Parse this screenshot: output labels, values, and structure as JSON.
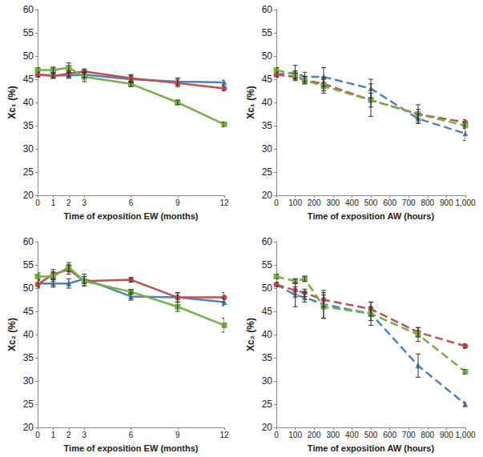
{
  "chart_data": [
    {
      "type": "line",
      "x_label": "Time of exposition EW (months)",
      "y_label": "Xc₁ (%)",
      "x": [
        0,
        1,
        2,
        3,
        6,
        9,
        12
      ],
      "xlim": [
        0,
        12
      ],
      "xticks": [
        0,
        1,
        2,
        3,
        6,
        9,
        12
      ],
      "ylim": [
        20,
        60
      ],
      "yticks": [
        20,
        25,
        30,
        35,
        40,
        45,
        50,
        55,
        60
      ],
      "grid": false,
      "series": [
        {
          "color": "#4f81bd",
          "marker": "triangle",
          "line_style": "solid",
          "values": [
            46,
            45.8,
            45.8,
            46,
            45,
            44.5,
            44.3
          ],
          "errors": [
            0.5,
            0.5,
            0.6,
            0.6,
            0.8,
            0.8,
            0.5
          ]
        },
        {
          "color": "#c0504d",
          "marker": "circle",
          "line_style": "solid",
          "values": [
            46,
            45.7,
            46.2,
            46.7,
            45.2,
            44.2,
            43
          ],
          "errors": [
            0.5,
            0.5,
            0.6,
            0.5,
            0.8,
            0.8,
            0.5
          ]
        },
        {
          "color": "#77b045",
          "marker": "square",
          "line_style": "solid",
          "values": [
            47,
            47,
            47.5,
            45.5,
            44,
            40,
            35.3
          ],
          "errors": [
            0.5,
            0.6,
            1,
            1,
            0.6,
            0.5,
            0.5
          ]
        }
      ]
    },
    {
      "type": "line",
      "x_label": "Time of exposition AW (hours)",
      "y_label": "Xc₁ (%)",
      "x": [
        0,
        100,
        150,
        250,
        500,
        750,
        1000
      ],
      "xlim": [
        0,
        1000
      ],
      "xticks": [
        0,
        100,
        200,
        300,
        400,
        500,
        600,
        700,
        800,
        900,
        1000
      ],
      "ylim": [
        20,
        60
      ],
      "yticks": [
        20,
        25,
        30,
        35,
        40,
        45,
        50,
        55,
        60
      ],
      "grid": false,
      "series": [
        {
          "color": "#4f81bd",
          "marker": "triangle",
          "line_style": "dashed",
          "values": [
            46,
            46.5,
            45.5,
            45.5,
            43,
            36.5,
            33.3
          ],
          "errors": [
            0.5,
            1.5,
            1,
            2,
            2,
            1,
            1.5
          ]
        },
        {
          "color": "#c0504d",
          "marker": "circle",
          "line_style": "dashed",
          "values": [
            46,
            45.5,
            44.8,
            44,
            40.5,
            37.5,
            35.7
          ],
          "errors": [
            0.5,
            0.8,
            0.8,
            1.5,
            1.5,
            2,
            0.6
          ]
        },
        {
          "color": "#77b045",
          "marker": "square",
          "line_style": "dashed",
          "values": [
            47,
            46,
            44.8,
            43.5,
            40.5,
            37.5,
            35
          ],
          "errors": [
            0.5,
            0.8,
            0.8,
            1.5,
            3.5,
            1,
            0.6
          ]
        }
      ]
    },
    {
      "type": "line",
      "x_label": "Time of exposition EW (months)",
      "y_label": "Xc₂ (%)",
      "x": [
        0,
        1,
        2,
        3,
        6,
        9,
        12
      ],
      "xlim": [
        0,
        12
      ],
      "xticks": [
        0,
        1,
        2,
        3,
        6,
        9,
        12
      ],
      "ylim": [
        20,
        60
      ],
      "yticks": [
        20,
        25,
        30,
        35,
        40,
        45,
        50,
        55,
        60
      ],
      "grid": false,
      "series": [
        {
          "color": "#4f81bd",
          "marker": "triangle",
          "line_style": "solid",
          "values": [
            51,
            51,
            51,
            52,
            48.2,
            48,
            47
          ],
          "errors": [
            0.8,
            0.8,
            1,
            1,
            0.8,
            1,
            0.8
          ]
        },
        {
          "color": "#c0504d",
          "marker": "circle",
          "line_style": "solid",
          "values": [
            50.8,
            53,
            54,
            51.5,
            51.8,
            48,
            48
          ],
          "errors": [
            0.8,
            1,
            1,
            1,
            0.5,
            1,
            1
          ]
        },
        {
          "color": "#77b045",
          "marker": "square",
          "line_style": "solid",
          "values": [
            52.5,
            52.5,
            54.5,
            51.5,
            49.2,
            46,
            42
          ],
          "errors": [
            0.8,
            1,
            1,
            1,
            0.5,
            1,
            1.5
          ]
        }
      ]
    },
    {
      "type": "line",
      "x_label": "Time of exposition AW (hours)",
      "y_label": "Xc₂ (%)",
      "x": [
        0,
        100,
        150,
        250,
        500,
        750,
        1000
      ],
      "xlim": [
        0,
        1000
      ],
      "xticks": [
        0,
        100,
        200,
        300,
        400,
        500,
        600,
        700,
        800,
        900,
        1000
      ],
      "ylim": [
        20,
        60
      ],
      "yticks": [
        20,
        25,
        30,
        35,
        40,
        45,
        50,
        55,
        60
      ],
      "grid": false,
      "series": [
        {
          "color": "#4f81bd",
          "marker": "triangle",
          "line_style": "dashed",
          "values": [
            50.8,
            48.5,
            48,
            46.5,
            44.5,
            33.3,
            25
          ],
          "errors": [
            0.5,
            2.5,
            1,
            3,
            2.5,
            2.5,
            0.5
          ]
        },
        {
          "color": "#c0504d",
          "marker": "circle",
          "line_style": "dashed",
          "values": [
            50.8,
            49.5,
            49,
            47.5,
            45.5,
            40.5,
            37.5
          ],
          "errors": [
            0.5,
            0.8,
            0.8,
            1.5,
            1.5,
            1,
            0.5
          ]
        },
        {
          "color": "#77b045",
          "marker": "square",
          "line_style": "dashed",
          "values": [
            52.5,
            51.5,
            52,
            46,
            44.5,
            40,
            32
          ],
          "errors": [
            0.5,
            0.5,
            0.6,
            2.5,
            1.5,
            1.5,
            0.5
          ]
        }
      ]
    }
  ]
}
